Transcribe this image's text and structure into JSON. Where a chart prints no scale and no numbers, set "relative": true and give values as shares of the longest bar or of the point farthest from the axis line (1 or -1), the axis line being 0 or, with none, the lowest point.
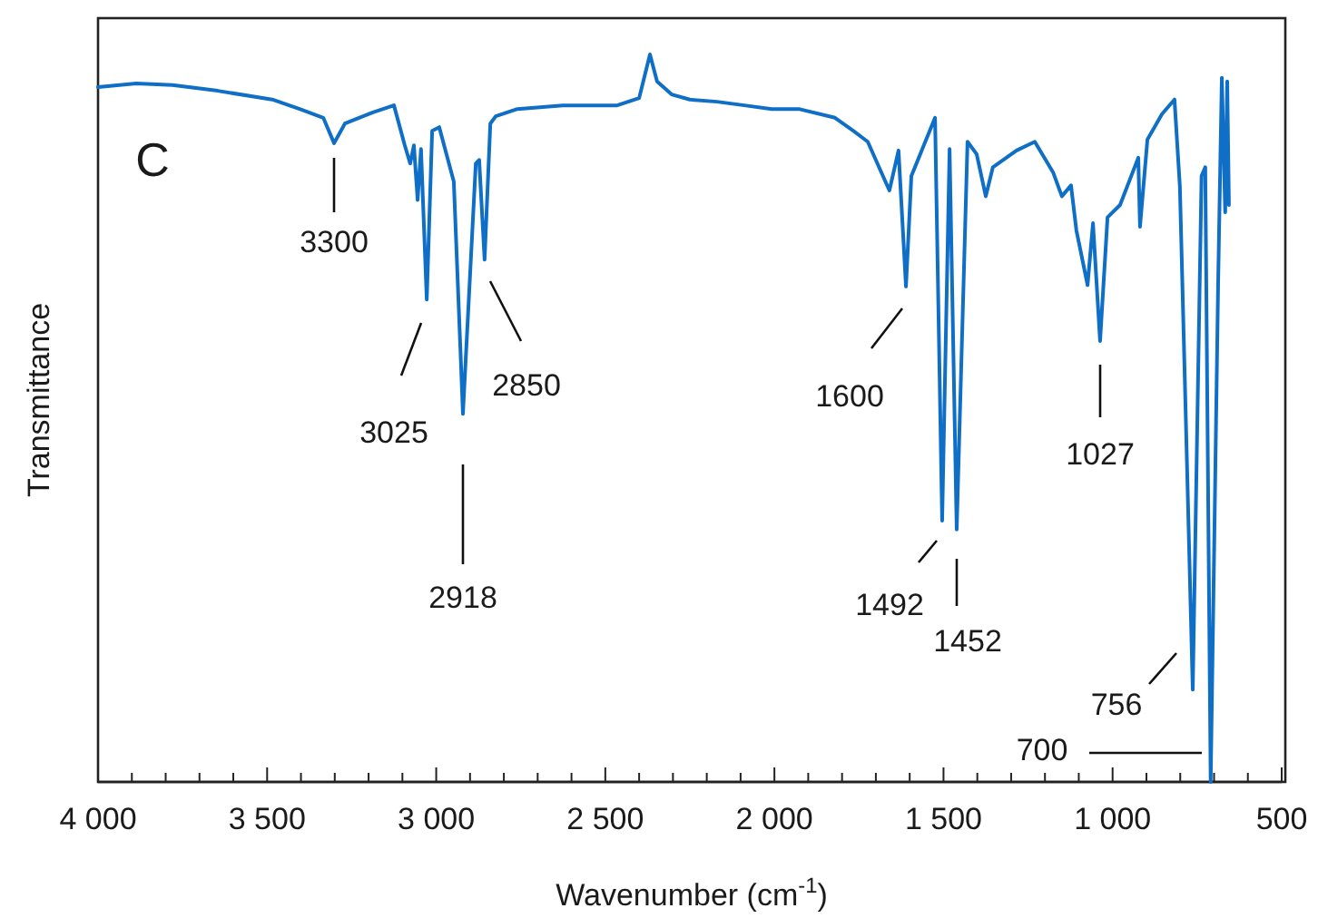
{
  "chart_data": {
    "type": "line",
    "relative": true,
    "xlabel": "Wavenumber (cm$^{-1}$)",
    "ylabel": "Transmittance",
    "xlim": [
      4000,
      500
    ],
    "xticks": [
      {
        "value": 4000,
        "label": "4 000"
      },
      {
        "value": 3900,
        "label": null
      },
      {
        "value": 3800,
        "label": null
      },
      {
        "value": 3700,
        "label": null
      },
      {
        "value": 3600,
        "label": null
      },
      {
        "value": 3500,
        "label": "3 500"
      },
      {
        "value": 3400,
        "label": null
      },
      {
        "value": 3300,
        "label": null
      },
      {
        "value": 3200,
        "label": null
      },
      {
        "value": 3100,
        "label": null
      },
      {
        "value": 3000,
        "label": "3 000"
      },
      {
        "value": 2900,
        "label": null
      },
      {
        "value": 2800,
        "label": null
      },
      {
        "value": 2700,
        "label": null
      },
      {
        "value": 2600,
        "label": null
      },
      {
        "value": 2500,
        "label": "2 500"
      },
      {
        "value": 2400,
        "label": null
      },
      {
        "value": 2300,
        "label": null
      },
      {
        "value": 2200,
        "label": null
      },
      {
        "value": 2100,
        "label": null
      },
      {
        "value": 2000,
        "label": "2 000"
      },
      {
        "value": 1900,
        "label": null
      },
      {
        "value": 1800,
        "label": null
      },
      {
        "value": 1700,
        "label": null
      },
      {
        "value": 1600,
        "label": null
      },
      {
        "value": 1500,
        "label": "1 500"
      },
      {
        "value": 1400,
        "label": null
      },
      {
        "value": 1300,
        "label": null
      },
      {
        "value": 1200,
        "label": null
      },
      {
        "value": 1100,
        "label": null
      },
      {
        "value": 1000,
        "label": "1 000"
      },
      {
        "value": 900,
        "label": null
      },
      {
        "value": 800,
        "label": null
      },
      {
        "value": 700,
        "label": null
      },
      {
        "value": 600,
        "label": null
      },
      {
        "value": 500,
        "label": "500"
      }
    ],
    "series": [
      {
        "color": "#0f6fc6",
        "x": [
          4000,
          3887,
          3780,
          3646,
          3485,
          3404,
          3334,
          3302,
          3270,
          3189,
          3125,
          3093,
          3077,
          3066,
          3055,
          3045,
          3028,
          3012,
          2991,
          2948,
          2921,
          2883,
          2873,
          2857,
          2840,
          2824,
          2760,
          2626,
          2465,
          2400,
          2368,
          2347,
          2304,
          2250,
          2170,
          2089,
          2008,
          1928,
          1821,
          1767,
          1724,
          1660,
          1633,
          1611,
          1595,
          1525,
          1504,
          1482,
          1461,
          1429,
          1402,
          1375,
          1354,
          1284,
          1230,
          1176,
          1150,
          1123,
          1107,
          1074,
          1058,
          1037,
          1015,
          978,
          924,
          919,
          897,
          854,
          817,
          801,
          763,
          737,
          726,
          710,
          688,
          677,
          667,
          661,
          656
        ],
        "values": [
          0.955,
          0.96,
          0.958,
          0.95,
          0.938,
          0.925,
          0.913,
          0.878,
          0.905,
          0.92,
          0.93,
          0.875,
          0.85,
          0.875,
          0.8,
          0.87,
          0.663,
          0.895,
          0.9,
          0.825,
          0.506,
          0.85,
          0.855,
          0.718,
          0.905,
          0.915,
          0.925,
          0.93,
          0.93,
          0.94,
          1,
          0.963,
          0.945,
          0.938,
          0.935,
          0.93,
          0.925,
          0.925,
          0.913,
          0.895,
          0.88,
          0.813,
          0.868,
          0.681,
          0.833,
          0.913,
          0.359,
          0.87,
          0.347,
          0.88,
          0.863,
          0.805,
          0.845,
          0.868,
          0.88,
          0.838,
          0.805,
          0.82,
          0.758,
          0.683,
          0.768,
          0.606,
          0.776,
          0.793,
          0.858,
          0.763,
          0.883,
          0.918,
          0.938,
          0.818,
          0.127,
          0.833,
          0.845,
          0,
          0.683,
          0.968,
          0.783,
          0.963,
          0.793
        ]
      }
    ],
    "annotations": [
      "C",
      "3300",
      "3025",
      "2918",
      "2850",
      "1600",
      "1492",
      "1452",
      "1027",
      "756",
      "700"
    ]
  }
}
